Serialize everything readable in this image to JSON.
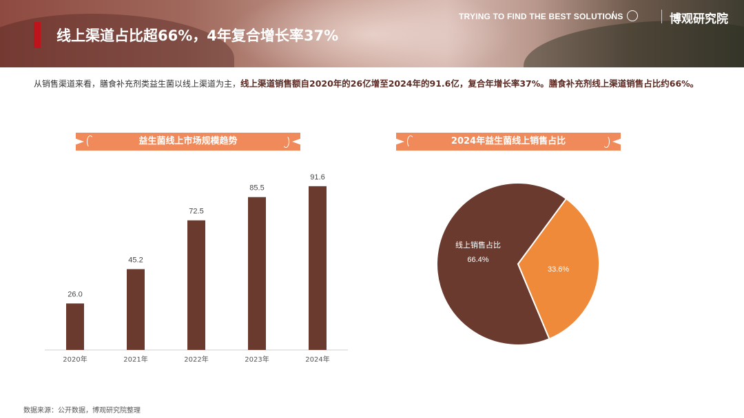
{
  "header": {
    "title": "线上渠道占比超66%，4年复合增长率37%",
    "tagline": "TRYING TO FIND THE BEST SOLUTIONS",
    "slash": "/",
    "brand": "博观研究院"
  },
  "description": {
    "part1": "从销售渠道来看，膳食补充剂类益生菌以线上渠道为主，",
    "part2": "线上渠道销售额自2020年的26亿增至2024年的91.6亿，复合年增长率37%。膳食补充剂线上渠道销售占比约66%。"
  },
  "colors": {
    "bar": "#6b3a2e",
    "pie_online": "#6b3a2e",
    "pie_other": "#ee8a3a",
    "ribbon": "#f08a5a",
    "title_accent": "#c0141c"
  },
  "left_panel": {
    "ribbon_label": "益生菌线上市场规模趋势"
  },
  "right_panel": {
    "ribbon_label": "2024年益生菌线上销售占比"
  },
  "chart_data": [
    {
      "type": "bar",
      "title": "益生菌线上市场规模趋势",
      "categories": [
        "2020年",
        "2021年",
        "2022年",
        "2023年",
        "2024年"
      ],
      "values": [
        26.0,
        45.2,
        72.5,
        85.5,
        91.6
      ],
      "value_labels": [
        "26.0",
        "45.2",
        "72.5",
        "85.5",
        "91.6"
      ],
      "ylim": [
        0,
        100
      ],
      "grid": false,
      "legend": "none"
    },
    {
      "type": "pie",
      "title": "2024年益生菌线上销售占比",
      "slices": [
        {
          "label": "线上销售占比",
          "value": 66.4,
          "value_label": "66.4%"
        },
        {
          "label": "",
          "value": 33.6,
          "value_label": "33.6%"
        }
      ],
      "legend": "none"
    }
  ],
  "source": "数据来源：公开数据，博观研究院整理"
}
